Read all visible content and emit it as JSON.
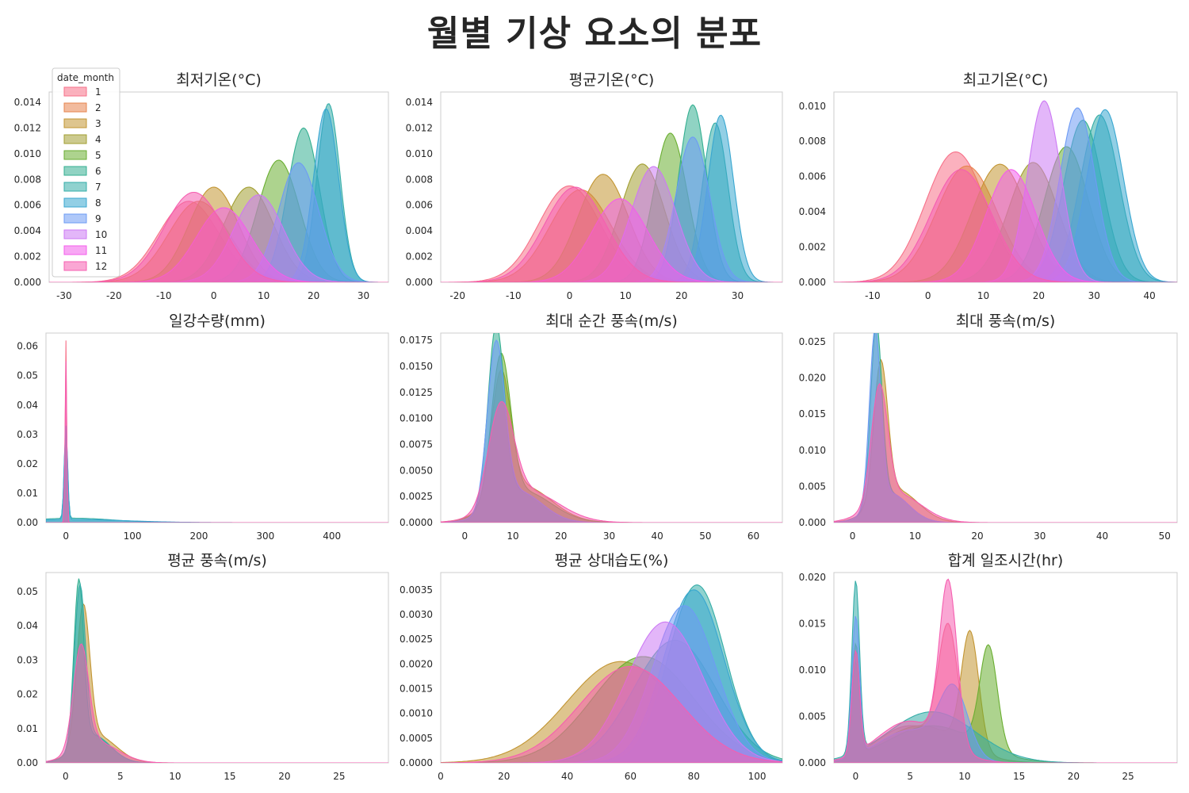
{
  "title": "월별 기상 요소의 분포",
  "legend": {
    "title": "date_month",
    "labels": [
      "1",
      "2",
      "3",
      "4",
      "5",
      "6",
      "7",
      "8",
      "9",
      "10",
      "11",
      "12"
    ],
    "colors": [
      "#f77189",
      "#dc8932",
      "#ae9d31",
      "#77ab31",
      "#33b07a",
      "#36ada4",
      "#38a9c5",
      "#6e9bf4",
      "#cc7af4",
      "#f565cc",
      "#f565cc",
      "#f565cc"
    ]
  },
  "month_colors": [
    "#f77189",
    "#e7844f",
    "#c29532",
    "#a29f32",
    "#6aae31",
    "#34af91",
    "#35ada8",
    "#39a7d0",
    "#6e9bf4",
    "#cc7af4",
    "#f35eeb",
    "#f55fb0"
  ],
  "chart_data": [
    {
      "type": "area",
      "title": "최저기온(°C)",
      "xlim": [
        -33,
        35
      ],
      "ylim": [
        0,
        0.0148
      ],
      "xticks": [
        -30,
        -20,
        -10,
        0,
        10,
        20,
        30
      ],
      "xtick_labels": [
        "-30",
        "-20",
        "-10",
        "0",
        "10",
        "20",
        "30"
      ],
      "yticks": [
        0,
        0.002,
        0.004,
        0.006,
        0.008,
        0.01,
        0.012,
        0.014
      ],
      "ytick_labels": [
        "0.000",
        "0.002",
        "0.004",
        "0.006",
        "0.008",
        "0.010",
        "0.012",
        "0.014"
      ],
      "series": [
        {
          "month": 1,
          "peaks": [
            [
              -5,
              6.0,
              0.0063
            ]
          ]
        },
        {
          "month": 2,
          "peaks": [
            [
              -3,
              6.0,
              0.0063
            ]
          ]
        },
        {
          "month": 3,
          "peaks": [
            [
              0,
              5.0,
              0.0074
            ]
          ]
        },
        {
          "month": 4,
          "peaks": [
            [
              7,
              5.0,
              0.0074
            ]
          ]
        },
        {
          "month": 5,
          "peaks": [
            [
              13,
              4.2,
              0.0095
            ]
          ]
        },
        {
          "month": 6,
          "peaks": [
            [
              18,
              3.2,
              0.012
            ]
          ]
        },
        {
          "month": 7,
          "peaks": [
            [
              23,
              2.3,
              0.0139
            ]
          ]
        },
        {
          "month": 8,
          "peaks": [
            [
              22.5,
              2.5,
              0.0135
            ]
          ]
        },
        {
          "month": 9,
          "peaks": [
            [
              17,
              4.0,
              0.0093
            ]
          ]
        },
        {
          "month": 10,
          "peaks": [
            [
              9,
              5.0,
              0.0068
            ]
          ]
        },
        {
          "month": 11,
          "peaks": [
            [
              2,
              5.5,
              0.0058
            ]
          ]
        },
        {
          "month": 12,
          "peaks": [
            [
              -4,
              6.0,
              0.007
            ]
          ]
        }
      ]
    },
    {
      "type": "area",
      "title": "평균기온(°C)",
      "xlim": [
        -23,
        38
      ],
      "ylim": [
        0,
        0.0148
      ],
      "xticks": [
        -20,
        -10,
        0,
        10,
        20,
        30
      ],
      "xtick_labels": [
        "-20",
        "-10",
        "0",
        "10",
        "20",
        "30"
      ],
      "yticks": [
        0,
        0.002,
        0.004,
        0.006,
        0.008,
        0.01,
        0.012,
        0.014
      ],
      "ytick_labels": [
        "0.000",
        "0.002",
        "0.004",
        "0.006",
        "0.008",
        "0.010",
        "0.012",
        "0.014"
      ],
      "series": [
        {
          "month": 1,
          "peaks": [
            [
              0,
              5.5,
              0.0075
            ]
          ]
        },
        {
          "month": 2,
          "peaks": [
            [
              2,
              5.5,
              0.0072
            ]
          ]
        },
        {
          "month": 3,
          "peaks": [
            [
              6,
              4.5,
              0.0084
            ]
          ]
        },
        {
          "month": 4,
          "peaks": [
            [
              13,
              4.0,
              0.0092
            ]
          ]
        },
        {
          "month": 5,
          "peaks": [
            [
              18,
              3.0,
              0.0116
            ]
          ]
        },
        {
          "month": 6,
          "peaks": [
            [
              22,
              2.5,
              0.0138
            ]
          ]
        },
        {
          "month": 7,
          "peaks": [
            [
              26,
              2.3,
              0.0124
            ]
          ]
        },
        {
          "month": 8,
          "peaks": [
            [
              27,
              2.3,
              0.013
            ]
          ]
        },
        {
          "month": 9,
          "peaks": [
            [
              22,
              3.0,
              0.0113
            ]
          ]
        },
        {
          "month": 10,
          "peaks": [
            [
              15,
              4.0,
              0.009
            ]
          ]
        },
        {
          "month": 11,
          "peaks": [
            [
              9,
              5.0,
              0.0065
            ]
          ]
        },
        {
          "month": 12,
          "peaks": [
            [
              1,
              5.5,
              0.0074
            ]
          ]
        }
      ]
    },
    {
      "type": "area",
      "title": "최고기온(°C)",
      "xlim": [
        -17,
        45
      ],
      "ylim": [
        0,
        0.0108
      ],
      "xticks": [
        -10,
        0,
        10,
        20,
        30,
        40
      ],
      "xtick_labels": [
        "-10",
        "0",
        "10",
        "20",
        "30",
        "40"
      ],
      "yticks": [
        0,
        0.002,
        0.004,
        0.006,
        0.008,
        0.01
      ],
      "ytick_labels": [
        "0.000",
        "0.002",
        "0.004",
        "0.006",
        "0.008",
        "0.010"
      ],
      "series": [
        {
          "month": 1,
          "peaks": [
            [
              5,
              5.5,
              0.0074
            ]
          ]
        },
        {
          "month": 2,
          "peaks": [
            [
              7,
              5.5,
              0.0066
            ]
          ]
        },
        {
          "month": 3,
          "peaks": [
            [
              13,
              5.0,
              0.0067
            ]
          ]
        },
        {
          "month": 4,
          "peaks": [
            [
              19,
              4.5,
              0.0068
            ]
          ]
        },
        {
          "month": 5,
          "peaks": [
            [
              25,
              4.0,
              0.0077
            ]
          ]
        },
        {
          "month": 6,
          "peaks": [
            [
              28,
              3.5,
              0.0092
            ]
          ]
        },
        {
          "month": 7,
          "peaks": [
            [
              31,
              3.5,
              0.0095
            ]
          ]
        },
        {
          "month": 8,
          "peaks": [
            [
              32,
              3.3,
              0.0098
            ]
          ]
        },
        {
          "month": 9,
          "peaks": [
            [
              27,
              3.2,
              0.0099
            ]
          ]
        },
        {
          "month": 10,
          "peaks": [
            [
              21,
              3.0,
              0.0103
            ]
          ]
        },
        {
          "month": 11,
          "peaks": [
            [
              15,
              4.5,
              0.0064
            ]
          ]
        },
        {
          "month": 12,
          "peaks": [
            [
              6,
              5.5,
              0.0064
            ]
          ]
        }
      ]
    },
    {
      "type": "area",
      "title": "일강수량(mm)",
      "xlim": [
        -30,
        485
      ],
      "ylim": [
        0,
        0.0645
      ],
      "xticks": [
        0,
        100,
        200,
        300,
        400
      ],
      "xtick_labels": [
        "0",
        "100",
        "200",
        "300",
        "400"
      ],
      "yticks": [
        0,
        0.01,
        0.02,
        0.03,
        0.04,
        0.05,
        0.06
      ],
      "ytick_labels": [
        "0.00",
        "0.01",
        "0.02",
        "0.03",
        "0.04",
        "0.05",
        "0.06"
      ],
      "series": [
        {
          "month": 1,
          "peaks": [
            [
              0,
              1.2,
              0.062
            ]
          ]
        },
        {
          "month": 7,
          "peaks": [
            [
              0,
              2.5,
              0.03
            ],
            [
              10,
              60,
              0.0015
            ]
          ]
        },
        {
          "month": 8,
          "peaks": [
            [
              0,
              2.5,
              0.032
            ],
            [
              15,
              80,
              0.001
            ]
          ]
        },
        {
          "month": 12,
          "peaks": [
            [
              0,
              1.3,
              0.055
            ]
          ]
        }
      ]
    },
    {
      "type": "area",
      "title": "최대 순간 풍속(m/s)",
      "xlim": [
        -5,
        66
      ],
      "ylim": [
        0,
        0.0182
      ],
      "xticks": [
        0,
        10,
        20,
        30,
        40,
        50,
        60
      ],
      "xtick_labels": [
        "0",
        "10",
        "20",
        "30",
        "40",
        "50",
        "60"
      ],
      "yticks": [
        0,
        0.0025,
        0.005,
        0.0075,
        0.01,
        0.0125,
        0.015,
        0.0175
      ],
      "ytick_labels": [
        "0.0000",
        "0.0025",
        "0.0050",
        "0.0075",
        "0.0100",
        "0.0125",
        "0.0150",
        "0.0175"
      ],
      "series": [
        {
          "month": 3,
          "peaks": [
            [
              7.5,
              2.0,
              0.012
            ],
            [
              12,
              6,
              0.0035
            ]
          ]
        },
        {
          "month": 5,
          "peaks": [
            [
              7.5,
              2.0,
              0.014
            ],
            [
              12,
              6,
              0.003
            ]
          ]
        },
        {
          "month": 6,
          "peaks": [
            [
              6.5,
              1.7,
              0.017
            ],
            [
              11,
              5,
              0.003
            ]
          ]
        },
        {
          "month": 9,
          "peaks": [
            [
              6.5,
              1.8,
              0.0155
            ],
            [
              11,
              5,
              0.003
            ]
          ]
        },
        {
          "month": 12,
          "peaks": [
            [
              7.5,
              2.6,
              0.0095
            ],
            [
              13,
              6.5,
              0.003
            ]
          ]
        }
      ]
    },
    {
      "type": "area",
      "title": "최대 풍속(m/s)",
      "xlim": [
        -3,
        52
      ],
      "ylim": [
        0,
        0.0262
      ],
      "xticks": [
        0,
        10,
        20,
        30,
        40,
        50
      ],
      "xtick_labels": [
        "0",
        "10",
        "20",
        "30",
        "40",
        "50"
      ],
      "yticks": [
        0,
        0.005,
        0.01,
        0.015,
        0.02,
        0.025
      ],
      "ytick_labels": [
        "0.000",
        "0.005",
        "0.010",
        "0.015",
        "0.020",
        "0.025"
      ],
      "series": [
        {
          "month": 3,
          "peaks": [
            [
              4.5,
              1.1,
              0.019
            ],
            [
              7,
              3.5,
              0.0045
            ]
          ]
        },
        {
          "month": 6,
          "peaks": [
            [
              3.8,
              0.9,
              0.0245
            ],
            [
              6,
              3,
              0.004
            ]
          ]
        },
        {
          "month": 9,
          "peaks": [
            [
              3.6,
              0.9,
              0.024
            ],
            [
              6,
              3,
              0.004
            ]
          ]
        },
        {
          "month": 12,
          "peaks": [
            [
              4.3,
              1.3,
              0.016
            ],
            [
              7,
              4,
              0.004
            ]
          ]
        }
      ]
    },
    {
      "type": "area",
      "title": "평균 풍속(m/s)",
      "xlim": [
        -1.8,
        29.5
      ],
      "ylim": [
        0,
        0.0555
      ],
      "xticks": [
        0,
        5,
        10,
        15,
        20,
        25
      ],
      "xtick_labels": [
        "0",
        "5",
        "10",
        "15",
        "20",
        "25"
      ],
      "yticks": [
        0,
        0.01,
        0.02,
        0.03,
        0.04,
        0.05
      ],
      "ytick_labels": [
        "0.00",
        "0.01",
        "0.02",
        "0.03",
        "0.04",
        "0.05"
      ],
      "series": [
        {
          "month": 3,
          "peaks": [
            [
              1.6,
              0.6,
              0.04
            ],
            [
              2.8,
              1.8,
              0.008
            ]
          ]
        },
        {
          "month": 6,
          "peaks": [
            [
              1.2,
              0.45,
              0.048
            ],
            [
              2.5,
              1.6,
              0.008
            ]
          ]
        },
        {
          "month": 7,
          "peaks": [
            [
              1.3,
              0.5,
              0.046
            ],
            [
              2.5,
              1.6,
              0.008
            ]
          ]
        },
        {
          "month": 12,
          "peaks": [
            [
              1.4,
              0.7,
              0.03
            ],
            [
              2.8,
              2,
              0.006
            ]
          ]
        }
      ]
    },
    {
      "type": "area",
      "title": "평균 상대습도(%)",
      "xlim": [
        0,
        108
      ],
      "ylim": [
        0,
        0.00385
      ],
      "xticks": [
        0,
        20,
        40,
        60,
        80,
        100
      ],
      "xtick_labels": [
        "0",
        "20",
        "40",
        "60",
        "80",
        "100"
      ],
      "yticks": [
        0,
        0.0005,
        0.001,
        0.0015,
        0.002,
        0.0025,
        0.003,
        0.0035
      ],
      "ytick_labels": [
        "0.0000",
        "0.0005",
        "0.0010",
        "0.0015",
        "0.0020",
        "0.0025",
        "0.0030",
        "0.0035"
      ],
      "series": [
        {
          "month": 3,
          "peaks": [
            [
              57,
              17,
              0.00205
            ]
          ]
        },
        {
          "month": 5,
          "peaks": [
            [
              64,
              16,
              0.00215
            ]
          ]
        },
        {
          "month": 6,
          "peaks": [
            [
              74,
              13,
              0.00248
            ]
          ]
        },
        {
          "month": 7,
          "peaks": [
            [
              81,
              9,
              0.0036
            ]
          ]
        },
        {
          "month": 8,
          "peaks": [
            [
              80,
              9.5,
              0.0035
            ]
          ]
        },
        {
          "month": 9,
          "peaks": [
            [
              77,
              10,
              0.00318
            ]
          ]
        },
        {
          "month": 10,
          "peaks": [
            [
              71,
              12,
              0.00285
            ]
          ]
        },
        {
          "month": 12,
          "peaks": [
            [
              60,
              16,
              0.00195
            ]
          ]
        }
      ]
    },
    {
      "type": "area",
      "title": "합계 일조시간(hr)",
      "xlim": [
        -2,
        29.5
      ],
      "ylim": [
        0,
        0.0205
      ],
      "xticks": [
        0,
        5,
        10,
        15,
        20,
        25
      ],
      "xtick_labels": [
        "0",
        "5",
        "10",
        "15",
        "20",
        "25"
      ],
      "yticks": [
        0,
        0.005,
        0.01,
        0.015,
        0.02
      ],
      "ytick_labels": [
        "0.000",
        "0.005",
        "0.010",
        "0.015",
        "0.020"
      ],
      "series": [
        {
          "month": 1,
          "peaks": [
            [
              0,
              0.35,
              0.011
            ],
            [
              8.5,
              0.9,
              0.013
            ],
            [
              5,
              3,
              0.004
            ]
          ]
        },
        {
          "month": 3,
          "peaks": [
            [
              0,
              0.35,
              0.01
            ],
            [
              10.5,
              0.8,
              0.0125
            ],
            [
              6,
              3.5,
              0.004
            ]
          ]
        },
        {
          "month": 5,
          "peaks": [
            [
              0,
              0.35,
              0.012
            ],
            [
              12.2,
              0.8,
              0.011
            ],
            [
              7,
              4,
              0.004
            ]
          ]
        },
        {
          "month": 7,
          "peaks": [
            [
              0,
              0.35,
              0.0185
            ],
            [
              7,
              4,
              0.0055
            ]
          ]
        },
        {
          "month": 9,
          "peaks": [
            [
              0,
              0.35,
              0.015
            ],
            [
              9,
              1.3,
              0.007
            ],
            [
              5,
              3,
              0.0035
            ]
          ]
        },
        {
          "month": 12,
          "peaks": [
            [
              0,
              0.35,
              0.011
            ],
            [
              8.5,
              0.8,
              0.0175
            ],
            [
              5,
              3,
              0.0045
            ]
          ]
        }
      ]
    }
  ]
}
